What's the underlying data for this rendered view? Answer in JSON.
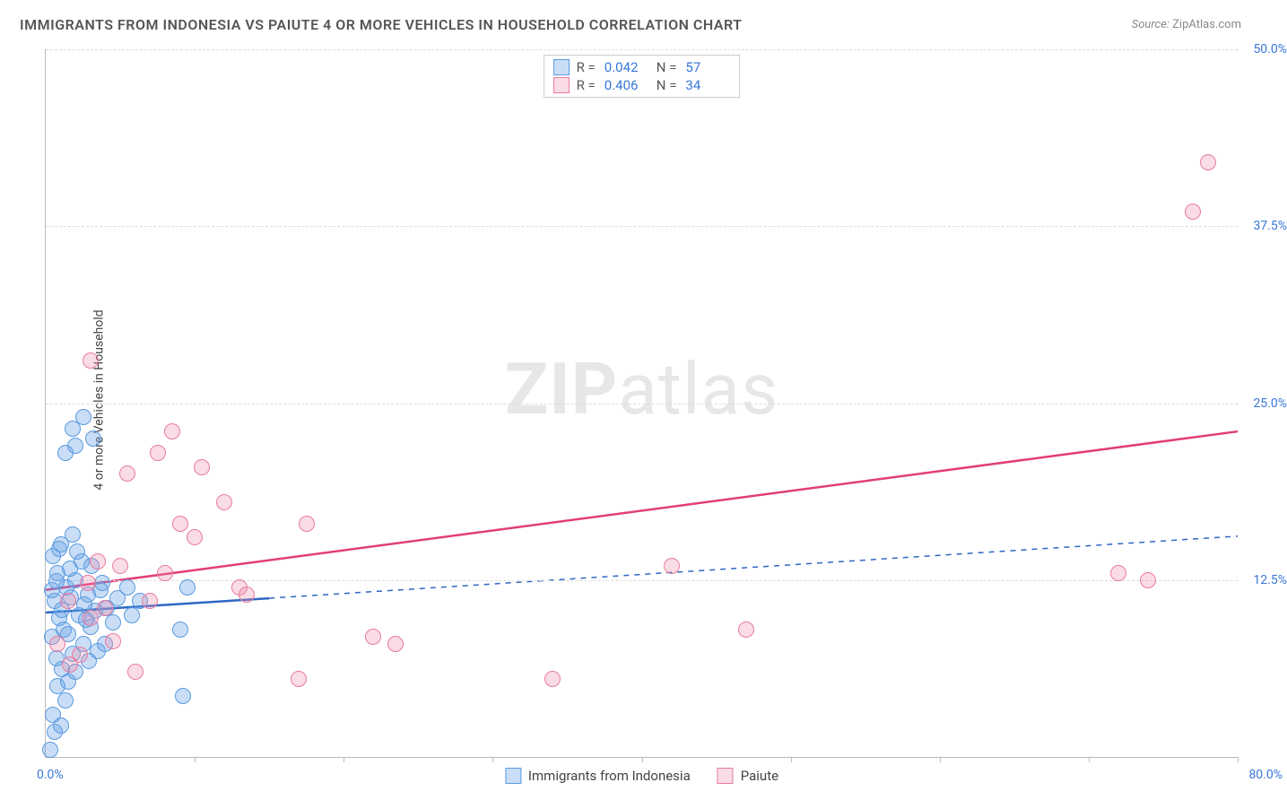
{
  "title": "IMMIGRANTS FROM INDONESIA VS PAIUTE 4 OR MORE VEHICLES IN HOUSEHOLD CORRELATION CHART",
  "source_label": "Source:",
  "source_value": "ZipAtlas.com",
  "watermark": {
    "bold": "ZIP",
    "rest": "atlas"
  },
  "chart": {
    "type": "scatter",
    "ylabel": "4 or more Vehicles in Household",
    "xlim": [
      0,
      80
    ],
    "ylim": [
      0,
      50
    ],
    "x_ticks": [
      0,
      10,
      20,
      30,
      40,
      50,
      60,
      70,
      80
    ],
    "y_ticks": [
      12.5,
      25.0,
      37.5,
      50.0
    ],
    "y_tick_labels": [
      "12.5%",
      "25.0%",
      "37.5%",
      "50.0%"
    ],
    "x_min_label": "0.0%",
    "x_max_label": "80.0%",
    "background_color": "#ffffff",
    "grid_color": "#dddddd",
    "axis_color": "#bbbbbb",
    "tick_label_color": "#3878d8",
    "point_radius": 9,
    "series": [
      {
        "name": "Immigrants from Indonesia",
        "fill": "rgba(100,160,230,0.35)",
        "stroke": "#5a9ae0",
        "R": "0.042",
        "N": "57",
        "trend": {
          "x1": 0,
          "y1": 10.2,
          "x2": 80,
          "y2": 15.6,
          "solid_until_x": 15,
          "color": "#2d68c4",
          "width": 2.5,
          "dash": "6,6"
        },
        "points": [
          [
            0.3,
            0.5
          ],
          [
            0.6,
            1.8
          ],
          [
            0.5,
            3.0
          ],
          [
            1.0,
            2.2
          ],
          [
            1.3,
            4.0
          ],
          [
            0.8,
            5.0
          ],
          [
            1.5,
            5.3
          ],
          [
            2.0,
            6.0
          ],
          [
            0.7,
            7.0
          ],
          [
            1.8,
            7.3
          ],
          [
            2.5,
            8.0
          ],
          [
            0.4,
            8.5
          ],
          [
            1.2,
            9.0
          ],
          [
            3.0,
            9.2
          ],
          [
            0.9,
            9.8
          ],
          [
            2.2,
            10.0
          ],
          [
            1.1,
            10.4
          ],
          [
            3.3,
            10.3
          ],
          [
            4.1,
            10.5
          ],
          [
            0.6,
            11.0
          ],
          [
            1.7,
            11.3
          ],
          [
            2.8,
            11.5
          ],
          [
            4.8,
            11.2
          ],
          [
            1.4,
            12.0
          ],
          [
            2.0,
            12.5
          ],
          [
            3.8,
            12.3
          ],
          [
            5.5,
            12.0
          ],
          [
            0.8,
            13.0
          ],
          [
            1.6,
            13.3
          ],
          [
            2.4,
            13.8
          ],
          [
            3.1,
            13.5
          ],
          [
            1.0,
            15.0
          ],
          [
            9.2,
            4.3
          ],
          [
            9.0,
            9.0
          ],
          [
            9.5,
            12.0
          ],
          [
            0.5,
            14.2
          ],
          [
            2.1,
            14.5
          ],
          [
            1.8,
            15.7
          ],
          [
            2.6,
            10.8
          ],
          [
            4.5,
            9.5
          ],
          [
            5.8,
            10.0
          ],
          [
            6.3,
            11.0
          ],
          [
            4.0,
            8.0
          ],
          [
            3.5,
            7.5
          ],
          [
            2.9,
            6.8
          ],
          [
            3.7,
            11.8
          ],
          [
            1.3,
            21.5
          ],
          [
            2.0,
            22.0
          ],
          [
            3.2,
            22.5
          ],
          [
            1.8,
            23.2
          ],
          [
            2.5,
            24.0
          ],
          [
            0.9,
            14.7
          ],
          [
            1.5,
            8.7
          ],
          [
            2.7,
            9.7
          ],
          [
            0.4,
            11.8
          ],
          [
            1.1,
            6.2
          ],
          [
            0.7,
            12.4
          ]
        ]
      },
      {
        "name": "Paiute",
        "fill": "rgba(240,140,170,0.3)",
        "stroke": "#e87aa0",
        "R": "0.406",
        "N": "34",
        "trend": {
          "x1": 0,
          "y1": 11.8,
          "x2": 80,
          "y2": 23.0,
          "solid_until_x": 80,
          "color": "#e23d7a",
          "width": 2.5,
          "dash": null
        },
        "points": [
          [
            0.8,
            8.0
          ],
          [
            1.6,
            6.5
          ],
          [
            2.3,
            7.2
          ],
          [
            3.0,
            9.8
          ],
          [
            4.0,
            10.5
          ],
          [
            5.0,
            13.5
          ],
          [
            6.0,
            6.0
          ],
          [
            7.0,
            11.0
          ],
          [
            8.0,
            13.0
          ],
          [
            9.0,
            16.5
          ],
          [
            10.0,
            15.5
          ],
          [
            12.0,
            18.0
          ],
          [
            13.0,
            12.0
          ],
          [
            13.5,
            11.5
          ],
          [
            3.0,
            28.0
          ],
          [
            3.5,
            13.8
          ],
          [
            5.5,
            20.0
          ],
          [
            7.5,
            21.5
          ],
          [
            8.5,
            23.0
          ],
          [
            10.5,
            20.5
          ],
          [
            22.0,
            8.5
          ],
          [
            23.5,
            8.0
          ],
          [
            17.0,
            5.5
          ],
          [
            17.5,
            16.5
          ],
          [
            34.0,
            5.5
          ],
          [
            42.0,
            13.5
          ],
          [
            47.0,
            9.0
          ],
          [
            72.0,
            13.0
          ],
          [
            74.0,
            12.5
          ],
          [
            77.0,
            38.5
          ],
          [
            78.0,
            42.0
          ],
          [
            1.5,
            11.0
          ],
          [
            2.8,
            12.3
          ],
          [
            4.5,
            8.2
          ]
        ]
      }
    ],
    "legend_bottom_labels": [
      "Immigrants from Indonesia",
      "Paiute"
    ],
    "R_label": "R =",
    "N_label": "N ="
  }
}
